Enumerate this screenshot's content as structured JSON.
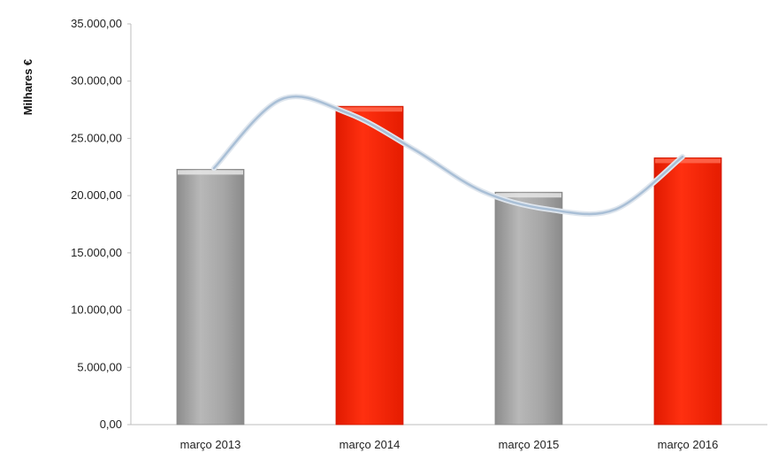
{
  "chart_data": {
    "type": "bar",
    "title": "",
    "xlabel": "",
    "ylabel": "Milhares €",
    "ylim": [
      0,
      35000
    ],
    "y_ticks": [
      0,
      5000,
      10000,
      15000,
      20000,
      25000,
      30000,
      35000
    ],
    "y_tick_labels": [
      "0,00",
      "5.000,00",
      "10.000,00",
      "15.000,00",
      "20.000,00",
      "25.000,00",
      "30.000,00",
      "35.000,00"
    ],
    "categories": [
      "março 2013",
      "março 2014",
      "março 2015",
      "março 2016"
    ],
    "values": [
      22300,
      27800,
      20300,
      23300
    ],
    "bar_colors": [
      "#a9a9a9",
      "#ff2200",
      "#a9a9a9",
      "#ff2200"
    ],
    "trend_line": {
      "color": "#a9bfd6",
      "points": [
        22400,
        28400,
        27200,
        24000,
        20400,
        18800,
        18800,
        23400
      ]
    },
    "grid": false,
    "legend": "none"
  }
}
